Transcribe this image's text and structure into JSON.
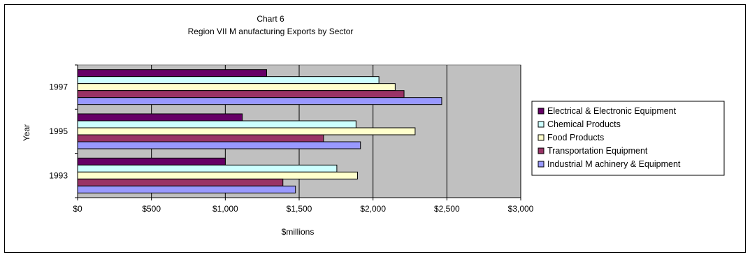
{
  "chart_data": {
    "type": "bar",
    "orientation": "horizontal",
    "title": "Chart 6",
    "subtitle": "Region VII M anufacturing Exports by Sector",
    "xlabel": "$millions",
    "ylabel": "Year",
    "categories": [
      "1997",
      "1995",
      "1993"
    ],
    "xlim": [
      0,
      3000
    ],
    "xticks": [
      0,
      500,
      1000,
      1500,
      2000,
      2500,
      3000
    ],
    "xtick_labels": [
      "$0",
      "$500",
      "$1,000",
      "$1,500",
      "$2,000",
      "$2,500",
      "$3,000"
    ],
    "grid": true,
    "legend_position": "right",
    "series": [
      {
        "name": "Electrical & Electronic Equipment",
        "color": "#660066",
        "values": [
          1280,
          1115,
          1000
        ]
      },
      {
        "name": "Chemical Products",
        "color": "#ccffff",
        "values": [
          2040,
          1885,
          1755
        ]
      },
      {
        "name": "Food Products",
        "color": "#ffffcc",
        "values": [
          2150,
          2285,
          1895
        ]
      },
      {
        "name": "Transportation Equipment",
        "color": "#993366",
        "values": [
          2210,
          1665,
          1390
        ]
      },
      {
        "name": "Industrial M achinery & Equipment",
        "color": "#9999ff",
        "values": [
          2465,
          1915,
          1475
        ]
      }
    ]
  }
}
